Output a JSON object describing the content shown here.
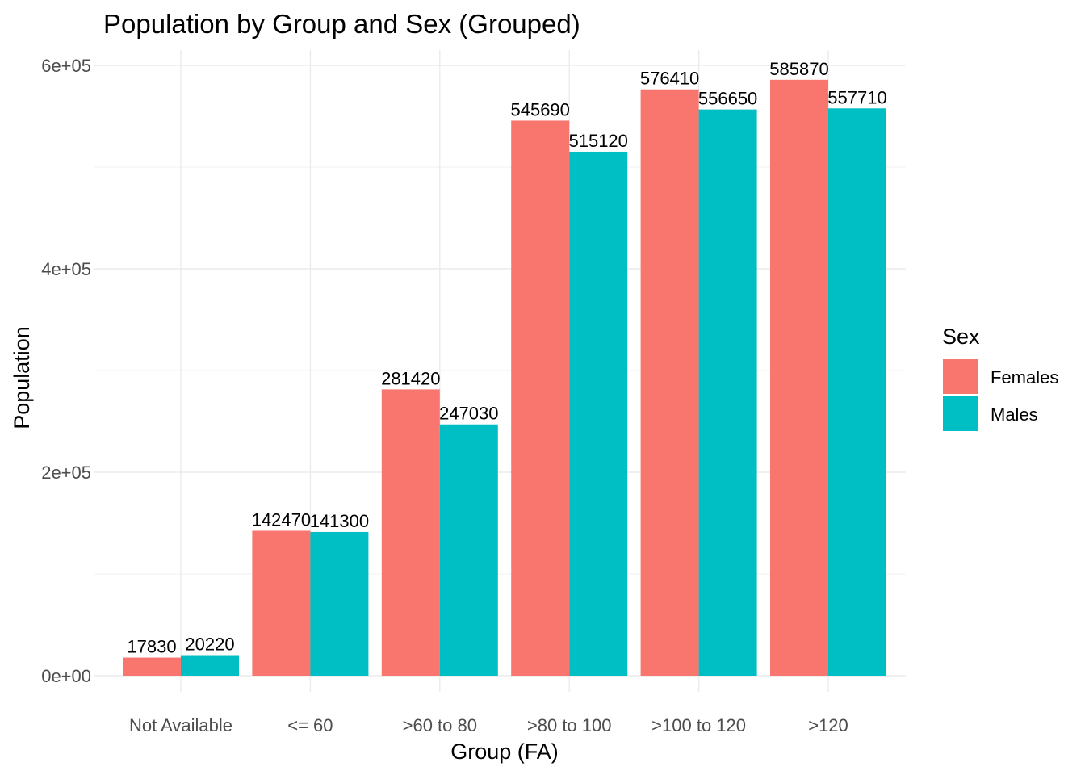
{
  "chart_data": {
    "type": "bar",
    "title": "Population by Group and Sex (Grouped)",
    "xlabel": "Group (FA)",
    "ylabel": "Population",
    "categories": [
      "Not Available",
      "<= 60",
      ">60 to 80",
      ">80 to 100",
      ">100 to 120",
      ">120"
    ],
    "series": [
      {
        "name": "Females",
        "color": "#f8766d",
        "values": [
          17830,
          142470,
          281420,
          545690,
          576410,
          585870
        ]
      },
      {
        "name": "Males",
        "color": "#00bfc4",
        "values": [
          20220,
          141300,
          247030,
          515120,
          556650,
          557710
        ]
      }
    ],
    "ylim": [
      0,
      600000
    ],
    "yticks": [
      0,
      200000,
      400000,
      600000
    ],
    "ytick_labels": [
      "0e+00",
      "2e+05",
      "4e+05",
      "6e+05"
    ],
    "grid": true,
    "legend": {
      "title": "Sex",
      "position": "right"
    }
  }
}
